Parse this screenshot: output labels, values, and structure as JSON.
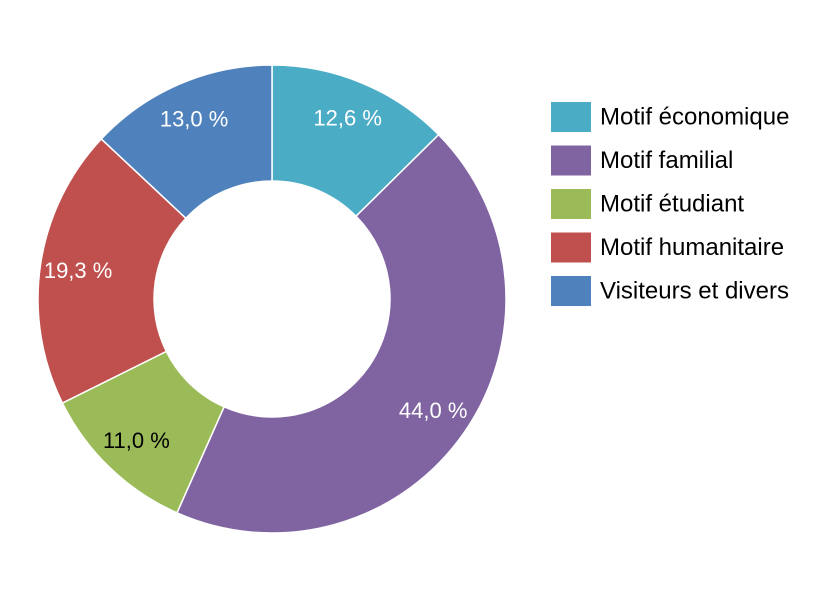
{
  "chart_data": {
    "type": "pie",
    "variant": "donut",
    "categories": [
      "Motif économique",
      "Motif familial",
      "Motif étudiant",
      "Motif humanitaire",
      "Visiteurs et divers"
    ],
    "values": [
      12.6,
      44.0,
      11.0,
      19.3,
      13.0
    ],
    "value_labels": [
      "12,6 %",
      "44,0 %",
      "11,0 %",
      "19,3 %",
      "13,0 %"
    ],
    "unit": "%",
    "colors": [
      "#4bacc6",
      "#8064a2",
      "#9bbb59",
      "#c0504d",
      "#4f81bd"
    ],
    "label_colors": [
      "#ffffff",
      "#ffffff",
      "#000000",
      "#ffffff",
      "#ffffff"
    ],
    "title": "",
    "legend_position": "right",
    "start_angle": "top, clockwise"
  }
}
